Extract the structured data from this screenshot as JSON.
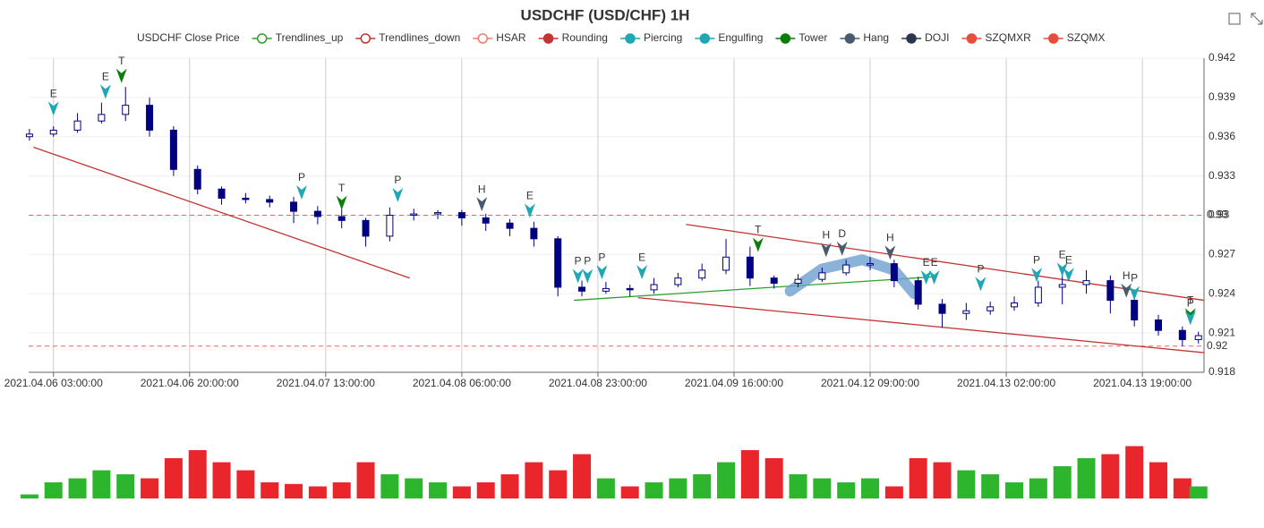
{
  "chart_data": {
    "type": "candlestick",
    "title": "USDCHF (USD/CHF) 1H",
    "legend": [
      {
        "name": "USDCHF Close Price"
      },
      {
        "name": "Trendlines_up",
        "color": "#2ca02c",
        "shape": "ring"
      },
      {
        "name": "Trendlines_down",
        "color": "#c23531",
        "shape": "ring"
      },
      {
        "name": "HSAR",
        "color": "#f07b6a",
        "shape": "ring"
      },
      {
        "name": "Rounding",
        "color": "#c23531",
        "shape": "dot"
      },
      {
        "name": "Piercing",
        "color": "#1fa7b3",
        "shape": "dot"
      },
      {
        "name": "Engulfing",
        "color": "#1fa7b3",
        "shape": "dot"
      },
      {
        "name": "Tower",
        "color": "#0a7d0a",
        "shape": "dot"
      },
      {
        "name": "Hang",
        "color": "#4a5a6e",
        "shape": "dot"
      },
      {
        "name": "DOJI",
        "color": "#2a3650",
        "shape": "dot"
      },
      {
        "name": "SZQMXR",
        "color": "#e84c3d",
        "shape": "dot"
      },
      {
        "name": "SZQMX",
        "color": "#e84c3d",
        "shape": "dot"
      }
    ],
    "xlim": [
      -0.1,
      146.7
    ],
    "xticks": [
      {
        "value": 3,
        "label": "2021.04.06 03:00:00"
      },
      {
        "value": 20,
        "label": "2021.04.06 20:00:00"
      },
      {
        "value": 37,
        "label": "2021.04.07 13:00:00"
      },
      {
        "value": 54,
        "label": "2021.04.08 06:00:00"
      },
      {
        "value": 71,
        "label": "2021.04.08 23:00:00"
      },
      {
        "value": 88,
        "label": "2021.04.09 16:00:00"
      },
      {
        "value": 105,
        "label": "2021.04.12 09:00:00"
      },
      {
        "value": 122,
        "label": "2021.04.13 02:00:00"
      },
      {
        "value": 139,
        "label": "2021.04.13 19:00:00"
      }
    ],
    "ylim": [
      0.918,
      0.942
    ],
    "yticks": [
      0.918,
      0.921,
      0.924,
      0.927,
      0.93,
      0.933,
      0.936,
      0.939,
      0.942
    ],
    "grid": true,
    "up_color": "#ffffff",
    "down_color": "#000080",
    "x": [
      0,
      3,
      6,
      9,
      12,
      15,
      18,
      21,
      24,
      27,
      30,
      33,
      36,
      39,
      42,
      45,
      48,
      51,
      54,
      57,
      60,
      63,
      66,
      69,
      72,
      75,
      78,
      81,
      84,
      87,
      90,
      93,
      96,
      99,
      102,
      105,
      108,
      111,
      114,
      117,
      120,
      123,
      126,
      129,
      132,
      135,
      138,
      141,
      144,
      146
    ],
    "ohlc": [
      [
        0.936,
        0.9366,
        0.9357,
        0.9362
      ],
      [
        0.9362,
        0.9368,
        0.936,
        0.9365
      ],
      [
        0.9365,
        0.9378,
        0.9363,
        0.9372
      ],
      [
        0.9372,
        0.9386,
        0.937,
        0.9377
      ],
      [
        0.9377,
        0.9398,
        0.9372,
        0.9384
      ],
      [
        0.9384,
        0.939,
        0.936,
        0.9365
      ],
      [
        0.9365,
        0.9368,
        0.933,
        0.9335
      ],
      [
        0.9335,
        0.9338,
        0.9316,
        0.932
      ],
      [
        0.932,
        0.9322,
        0.9308,
        0.9313
      ],
      [
        0.9313,
        0.9317,
        0.9309,
        0.9312
      ],
      [
        0.9312,
        0.9315,
        0.9306,
        0.931
      ],
      [
        0.931,
        0.9314,
        0.9294,
        0.9303
      ],
      [
        0.9303,
        0.9307,
        0.9293,
        0.9299
      ],
      [
        0.9299,
        0.9305,
        0.929,
        0.9296
      ],
      [
        0.9296,
        0.9298,
        0.9276,
        0.9284
      ],
      [
        0.9284,
        0.9306,
        0.928,
        0.93
      ],
      [
        0.93,
        0.9305,
        0.9296,
        0.9301
      ],
      [
        0.9301,
        0.9304,
        0.9297,
        0.9302
      ],
      [
        0.9302,
        0.9304,
        0.9292,
        0.9298
      ],
      [
        0.9298,
        0.9301,
        0.9288,
        0.9294
      ],
      [
        0.9294,
        0.9297,
        0.9284,
        0.929
      ],
      [
        0.929,
        0.9295,
        0.9276,
        0.9282
      ],
      [
        0.9282,
        0.9284,
        0.9238,
        0.9245
      ],
      [
        0.9245,
        0.925,
        0.9238,
        0.9242
      ],
      [
        0.9242,
        0.9249,
        0.924,
        0.9244
      ],
      [
        0.9244,
        0.9247,
        0.9238,
        0.9243
      ],
      [
        0.9243,
        0.9252,
        0.924,
        0.9247
      ],
      [
        0.9247,
        0.9256,
        0.9245,
        0.9252
      ],
      [
        0.9252,
        0.9263,
        0.925,
        0.9258
      ],
      [
        0.9258,
        0.9282,
        0.9255,
        0.9268
      ],
      [
        0.9268,
        0.9276,
        0.9246,
        0.9252
      ],
      [
        0.9252,
        0.9254,
        0.9244,
        0.9248
      ],
      [
        0.9248,
        0.9255,
        0.9245,
        0.9251
      ],
      [
        0.9251,
        0.926,
        0.9249,
        0.9256
      ],
      [
        0.9256,
        0.9266,
        0.9254,
        0.9262
      ],
      [
        0.9262,
        0.9268,
        0.9258,
        0.9263
      ],
      [
        0.9263,
        0.9266,
        0.9245,
        0.925
      ],
      [
        0.925,
        0.9253,
        0.9228,
        0.9232
      ],
      [
        0.9232,
        0.9236,
        0.9214,
        0.9225
      ],
      [
        0.9225,
        0.9233,
        0.922,
        0.9227
      ],
      [
        0.9227,
        0.9234,
        0.9224,
        0.923
      ],
      [
        0.923,
        0.9238,
        0.9227,
        0.9233
      ],
      [
        0.9233,
        0.925,
        0.923,
        0.9245
      ],
      [
        0.9245,
        0.9255,
        0.9232,
        0.9247
      ],
      [
        0.9247,
        0.9258,
        0.924,
        0.925
      ],
      [
        0.925,
        0.9254,
        0.9225,
        0.9235
      ],
      [
        0.9235,
        0.9238,
        0.9215,
        0.922
      ],
      [
        0.922,
        0.9224,
        0.9208,
        0.9212
      ],
      [
        0.9212,
        0.9215,
        0.92,
        0.9205
      ],
      [
        0.9205,
        0.9211,
        0.9202,
        0.9208
      ]
    ],
    "volume": [
      5,
      20,
      25,
      35,
      30,
      25,
      50,
      60,
      45,
      35,
      20,
      18,
      15,
      20,
      45,
      30,
      25,
      20,
      15,
      20,
      30,
      45,
      35,
      55,
      25,
      15,
      20,
      25,
      30,
      45,
      60,
      50,
      30,
      25,
      20,
      25,
      15,
      50,
      45,
      35,
      30,
      20,
      25,
      40,
      50,
      55,
      65,
      45,
      25,
      15
    ],
    "volume_lim": [
      0,
      100
    ],
    "volume_up_color": "#2db52d",
    "volume_down_color": "#e8262b",
    "hlines": [
      {
        "value": 0.93,
        "label": "0.93"
      },
      {
        "value": 0.92,
        "label": "0.92"
      }
    ],
    "hline_color": "#f06060",
    "trendlines": [
      {
        "x": [
          0.5,
          47.5
        ],
        "y": [
          0.9352,
          0.9252
        ],
        "color": "#c23531"
      },
      {
        "x": [
          68,
          113
        ],
        "y": [
          0.9235,
          0.9253
        ],
        "color": "#2ca02c"
      },
      {
        "x": [
          82,
          146.7
        ],
        "y": [
          0.9293,
          0.9235
        ],
        "color": "#c23531"
      },
      {
        "x": [
          76,
          146.7
        ],
        "y": [
          0.9237,
          0.9195
        ],
        "color": "#c23531"
      }
    ],
    "rounding": {
      "x": [
        95,
        99,
        104,
        108,
        110.5
      ],
      "y": [
        0.9242,
        0.9259,
        0.9266,
        0.9258,
        0.924
      ],
      "color": "#6e9fd0"
    },
    "markers": [
      {
        "x": 3,
        "y": 0.9376,
        "label": "E",
        "color": "#1fa7b3"
      },
      {
        "x": 9.5,
        "y": 0.9389,
        "label": "E",
        "color": "#1fa7b3"
      },
      {
        "x": 11.5,
        "y": 0.9401,
        "label": "T",
        "color": "#0a7d0a"
      },
      {
        "x": 34,
        "y": 0.9312,
        "label": "P",
        "color": "#1fa7b3"
      },
      {
        "x": 39,
        "y": 0.9304,
        "label": "T",
        "color": "#0a7d0a"
      },
      {
        "x": 46,
        "y": 0.931,
        "label": "P",
        "color": "#1fa7b3"
      },
      {
        "x": 56.5,
        "y": 0.9303,
        "label": "H",
        "color": "#4a5a6e"
      },
      {
        "x": 62.5,
        "y": 0.9298,
        "label": "E",
        "color": "#1fa7b3"
      },
      {
        "x": 68.5,
        "y": 0.9248,
        "label": "P",
        "color": "#1fa7b3"
      },
      {
        "x": 69.7,
        "y": 0.9248,
        "label": "P",
        "color": "#1fa7b3"
      },
      {
        "x": 71.5,
        "y": 0.9251,
        "label": "P",
        "color": "#1fa7b3"
      },
      {
        "x": 76.5,
        "y": 0.9251,
        "label": "E",
        "color": "#1fa7b3"
      },
      {
        "x": 91,
        "y": 0.9272,
        "label": "T",
        "color": "#0a7d0a"
      },
      {
        "x": 99.5,
        "y": 0.9268,
        "label": "H",
        "color": "#4a5a6e"
      },
      {
        "x": 101.5,
        "y": 0.9269,
        "label": "D",
        "color": "#4a5a6e"
      },
      {
        "x": 107.5,
        "y": 0.9266,
        "label": "H",
        "color": "#4a5a6e"
      },
      {
        "x": 112,
        "y": 0.9247,
        "label": "E",
        "color": "#1fa7b3"
      },
      {
        "x": 113,
        "y": 0.9247,
        "label": "E",
        "color": "#1fa7b3"
      },
      {
        "x": 118.8,
        "y": 0.9242,
        "label": "P",
        "color": "#1fa7b3"
      },
      {
        "x": 125.8,
        "y": 0.9249,
        "label": "P",
        "color": "#1fa7b3"
      },
      {
        "x": 129,
        "y": 0.9253,
        "label": "E",
        "color": "#1fa7b3"
      },
      {
        "x": 129.8,
        "y": 0.9249,
        "label": "E",
        "color": "#1fa7b3"
      },
      {
        "x": 137,
        "y": 0.9237,
        "label": "H",
        "color": "#4a5a6e"
      },
      {
        "x": 138,
        "y": 0.9235,
        "label": "P",
        "color": "#1fa7b3"
      },
      {
        "x": 145,
        "y": 0.9218,
        "label": "T",
        "color": "#0a7d0a"
      },
      {
        "x": 145,
        "y": 0.9216,
        "label": "P",
        "color": "#1fa7b3"
      }
    ]
  }
}
